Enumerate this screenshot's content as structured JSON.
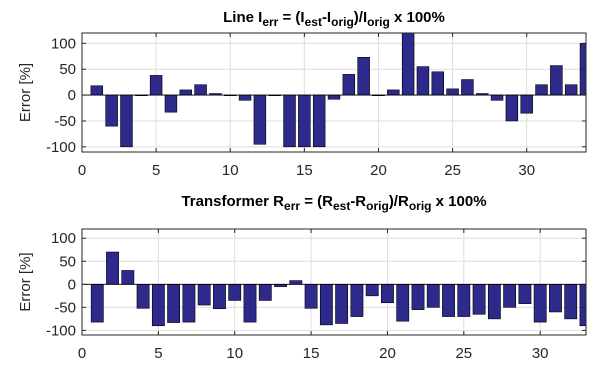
{
  "chart_data": [
    {
      "type": "bar",
      "title": {
        "parts": [
          {
            "text": "Line I"
          },
          {
            "text": "err",
            "sub": true
          },
          {
            "text": " = (I"
          },
          {
            "text": "est",
            "sub": true
          },
          {
            "text": "-I"
          },
          {
            "text": "orig",
            "sub": true
          },
          {
            "text": ")/I"
          },
          {
            "text": "orig",
            "sub": true
          },
          {
            "text": " x 100%"
          }
        ]
      },
      "ylabel": "Error [%]",
      "xlabel": "",
      "xlim": [
        0,
        34
      ],
      "ylim": [
        -110,
        120
      ],
      "xticks": [
        "0",
        "5",
        "10",
        "15",
        "20",
        "25",
        "30"
      ],
      "xtick_values": [
        0,
        5,
        10,
        15,
        20,
        25,
        30
      ],
      "yticks": [
        "100",
        "50",
        "0",
        "-50",
        "-100"
      ],
      "ytick_values": [
        100,
        50,
        0,
        -50,
        -100
      ],
      "grid": true,
      "bar_color": "#2e2a8c",
      "x": [
        1,
        2,
        3,
        4,
        5,
        6,
        7,
        8,
        9,
        10,
        11,
        12,
        13,
        14,
        15,
        16,
        17,
        18,
        19,
        20,
        21,
        22,
        23,
        24,
        25,
        26,
        27,
        28,
        29,
        30,
        31,
        32,
        33,
        34
      ],
      "values": [
        18,
        -60,
        -100,
        0,
        38,
        -33,
        10,
        20,
        3,
        0,
        -10,
        -95,
        0,
        -100,
        -100,
        -100,
        -8,
        40,
        73,
        0,
        10,
        120,
        55,
        45,
        12,
        30,
        3,
        -10,
        -50,
        -35,
        20,
        57,
        20,
        100
      ]
    },
    {
      "type": "bar",
      "title": {
        "parts": [
          {
            "text": "Transformer R"
          },
          {
            "text": "err",
            "sub": true
          },
          {
            "text": " = (R"
          },
          {
            "text": "est",
            "sub": true
          },
          {
            "text": "-R"
          },
          {
            "text": "orig",
            "sub": true
          },
          {
            "text": ")/R"
          },
          {
            "text": "orig",
            "sub": true
          },
          {
            "text": " x 100%"
          }
        ]
      },
      "ylabel": "Error [%]",
      "xlabel": "",
      "xlim": [
        0,
        33
      ],
      "ylim": [
        -110,
        120
      ],
      "xticks": [
        "0",
        "5",
        "10",
        "15",
        "20",
        "25",
        "30"
      ],
      "xtick_values": [
        0,
        5,
        10,
        15,
        20,
        25,
        30
      ],
      "yticks": [
        "100",
        "50",
        "0",
        "-50",
        "-100"
      ],
      "ytick_values": [
        100,
        50,
        0,
        -50,
        -100
      ],
      "grid": true,
      "bar_color": "#2e2a8c",
      "x": [
        1,
        2,
        3,
        4,
        5,
        6,
        7,
        8,
        9,
        10,
        11,
        12,
        13,
        14,
        15,
        16,
        17,
        18,
        19,
        20,
        21,
        22,
        23,
        24,
        25,
        26,
        27,
        28,
        29,
        30,
        31,
        32,
        33
      ],
      "values": [
        -82,
        70,
        30,
        -52,
        -90,
        -83,
        -82,
        -45,
        -53,
        -35,
        -82,
        -35,
        -5,
        8,
        -52,
        -88,
        -85,
        -70,
        -25,
        -40,
        -80,
        -55,
        -50,
        -70,
        -70,
        -65,
        -75,
        -50,
        -42,
        -82,
        -60,
        -75,
        -90
      ]
    }
  ]
}
